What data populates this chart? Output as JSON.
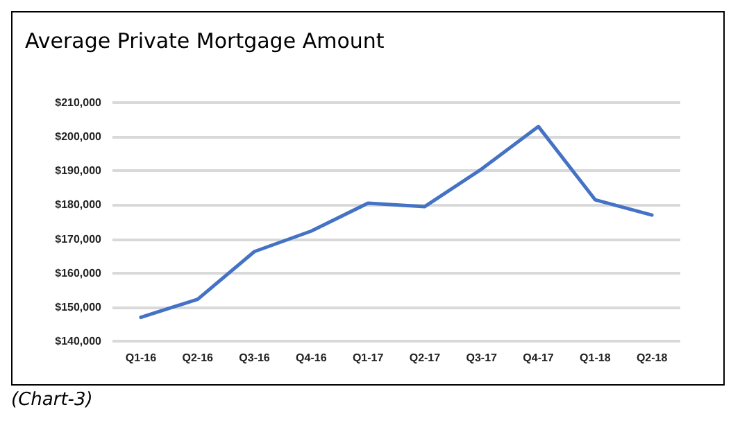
{
  "chart_data": {
    "type": "line",
    "title": "Average Private Mortgage Amount",
    "categories": [
      "Q1-16",
      "Q2-16",
      "Q3-16",
      "Q4-16",
      "Q1-17",
      "Q2-17",
      "Q3-17",
      "Q4-17",
      "Q1-18",
      "Q2-18"
    ],
    "series": [
      {
        "color": "#4472c4",
        "values": [
          147000,
          152300,
          166300,
          172300,
          180500,
          179500,
          190500,
          203000,
          181500,
          177000
        ]
      }
    ],
    "ylim": [
      140000,
      210000
    ],
    "yticks": [
      {
        "value": 140000,
        "label": "$140,000"
      },
      {
        "value": 150000,
        "label": "$150,000"
      },
      {
        "value": 160000,
        "label": "$160,000"
      },
      {
        "value": 170000,
        "label": "$170,000"
      },
      {
        "value": 180000,
        "label": "$180,000"
      },
      {
        "value": 190000,
        "label": "$190,000"
      },
      {
        "value": 200000,
        "label": "$200,000"
      },
      {
        "value": 210000,
        "label": "$210,000"
      }
    ],
    "grid": "y",
    "marker": "none",
    "line_style": "solid",
    "annotations": [
      "(Chart-3)"
    ]
  }
}
